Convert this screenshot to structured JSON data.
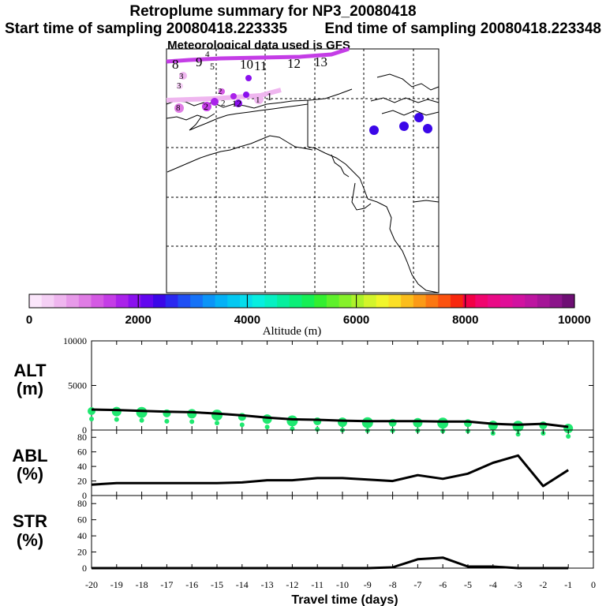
{
  "title": "Retroplume summary for NP3_20080418",
  "start_label": "Start time of sampling 20080418.223335",
  "end_label": "End time of sampling 20080418.223348",
  "met_label": "Meteorological data used is GFS",
  "colorbar": {
    "label": "Altitude (m)",
    "ticks": [
      "0",
      "2000",
      "4000",
      "6000",
      "8000",
      "10000"
    ],
    "colors": [
      "#fbe6fb",
      "#f5d0f5",
      "#efb6ef",
      "#e79ae9",
      "#df7ce4",
      "#d459e3",
      "#c43de6",
      "#aa22ea",
      "#8a10ee",
      "#6206ef",
      "#3b07e8",
      "#2a28f0",
      "#1e4ff4",
      "#1572f7",
      "#0b94f7",
      "#04b1f6",
      "#03c8f2",
      "#05dcec",
      "#07eee0",
      "#06f0c2",
      "#06ef9e",
      "#0bef78",
      "#15ef55",
      "#33ef30",
      "#5ef02b",
      "#86f12a",
      "#adf22a",
      "#d3f42b",
      "#f1f52a",
      "#fbdf25",
      "#fbbd1c",
      "#fb9a16",
      "#fb7712",
      "#fb520f",
      "#f8270d",
      "#f20046",
      "#f0056e",
      "#ea0a86",
      "#e00e97",
      "#d112a0",
      "#bd15a0",
      "#a51597",
      "#8b148a",
      "#6e0f74"
    ]
  },
  "map_labels": {
    "upper_track": [
      "8",
      "9",
      "4",
      "5",
      "10",
      "11",
      "12",
      "13"
    ],
    "lower_track": [
      "3",
      "3",
      "2",
      "8",
      "2",
      "2",
      "12",
      "1",
      "1"
    ]
  },
  "panels": [
    {
      "label_top": "ALT",
      "label_bottom": "(m)"
    },
    {
      "label_top": "ABL",
      "label_bottom": "(%)"
    },
    {
      "label_top": "STR",
      "label_bottom": "(%)"
    }
  ],
  "chart_data": {
    "type": "line",
    "xlabel": "Travel time (days)",
    "x": [
      -20,
      -19,
      -18,
      -17,
      -16,
      -15,
      -14,
      -13,
      -12,
      -11,
      -10,
      -9,
      -8,
      -7,
      -6,
      -5,
      -4,
      -3,
      -2,
      -1
    ],
    "xlim": [
      -20,
      0
    ],
    "x_tick_labels": [
      "-20",
      "-19",
      "-18",
      "-17",
      "-16",
      "-15",
      "-14",
      "-13",
      "-12",
      "-11",
      "-10",
      "-9",
      "-8",
      "-7",
      "-6",
      "-5",
      "-4",
      "-3",
      "-2",
      "-1",
      "0"
    ],
    "series": [
      {
        "name": "ALT",
        "ylabel": "ALT (m)",
        "ylim": [
          0,
          10000
        ],
        "y_ticks": [
          0,
          5000,
          10000
        ],
        "values": [
          2300,
          2250,
          2150,
          2050,
          2000,
          1850,
          1650,
          1400,
          1200,
          1150,
          1050,
          1000,
          1000,
          1000,
          950,
          950,
          700,
          600,
          700,
          350
        ],
        "scatter_color": "#1fe870"
      },
      {
        "name": "ABL",
        "ylabel": "ABL (%)",
        "ylim": [
          0,
          90
        ],
        "y_ticks": [
          0,
          20,
          40,
          60,
          80
        ],
        "values": [
          15,
          17,
          17,
          17,
          17,
          17,
          18,
          21,
          21,
          24,
          24,
          22,
          20,
          28,
          23,
          30,
          45,
          55,
          13,
          35
        ]
      },
      {
        "name": "STR",
        "ylabel": "STR (%)",
        "ylim": [
          0,
          90
        ],
        "y_ticks": [
          0,
          20,
          40,
          60,
          80
        ],
        "values": [
          0,
          0,
          0,
          0,
          0,
          0,
          0,
          0,
          0,
          0,
          0,
          0,
          1,
          11,
          13,
          2,
          2,
          0,
          0,
          0
        ]
      }
    ]
  }
}
